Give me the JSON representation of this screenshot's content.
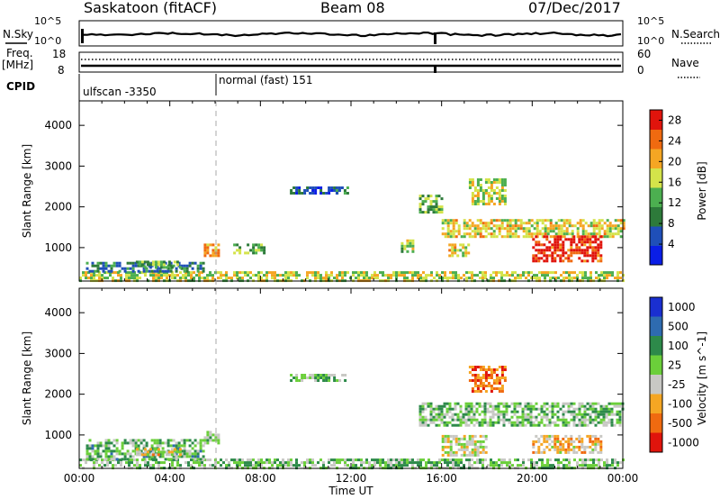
{
  "header": {
    "station": "Saskatoon (fitACF)",
    "beam": "Beam 08",
    "date": "07/Dec/2017"
  },
  "strip": {
    "nsky_label": "N.Sky",
    "nsky_ticks": [
      "10^5",
      "10^0"
    ],
    "nsearch_label": "N.Search",
    "nsearch_ticks": [
      "10^5",
      "10^0"
    ],
    "freq_label": "Freq.",
    "freq_unit": "[MHz]",
    "freq_ticks": [
      "18",
      "8"
    ],
    "nave_label": "Nave",
    "nave_ticks": [
      "60",
      "0"
    ],
    "cpid_label": "CPID",
    "cpid_modes": [
      {
        "name": "ulfscan -3350",
        "start_hour": 0
      },
      {
        "name": "normal (fast) 151",
        "start_hour": 6
      }
    ]
  },
  "x_axis": {
    "label": "Time UT",
    "ticks": [
      "00:00",
      "04:00",
      "08:00",
      "12:00",
      "16:00",
      "20:00",
      "00:00"
    ]
  },
  "chart_data": [
    {
      "type": "heatmap",
      "name": "Power",
      "ylabel": "Slant Range [km]",
      "yticks": [
        1000,
        2000,
        3000,
        4000
      ],
      "ylim": [
        180,
        4600
      ],
      "xlim": [
        0,
        24
      ],
      "colorbar": {
        "label": "Power [dB]",
        "ticks": [
          "4",
          "8",
          "12",
          "16",
          "20",
          "24",
          "28"
        ],
        "range": [
          0,
          30
        ],
        "colors": [
          "#0a1ee6",
          "#1f4fb8",
          "#2d7a3a",
          "#4caf50",
          "#d4e34a",
          "#f5a623",
          "#f06a10",
          "#e0140c"
        ]
      },
      "regions": [
        {
          "t0": 0.0,
          "t1": 24.0,
          "r0": 180,
          "r1": 420,
          "level": 0.55
        },
        {
          "t0": 0.3,
          "t1": 5.5,
          "r0": 420,
          "r1": 650,
          "level": 0.3
        },
        {
          "t0": 2.5,
          "t1": 4.5,
          "r0": 500,
          "r1": 680,
          "level": 0.4
        },
        {
          "t0": 5.5,
          "t1": 6.2,
          "r0": 800,
          "r1": 1100,
          "level": 0.7
        },
        {
          "t0": 6.8,
          "t1": 8.2,
          "r0": 900,
          "r1": 1100,
          "level": 0.4
        },
        {
          "t0": 9.3,
          "t1": 11.5,
          "r0": 2350,
          "r1": 2500,
          "level": 0.2
        },
        {
          "t0": 11.2,
          "t1": 11.8,
          "r0": 2350,
          "r1": 2500,
          "level": 0.3
        },
        {
          "t0": 14.2,
          "t1": 14.7,
          "r0": 900,
          "r1": 1200,
          "level": 0.5
        },
        {
          "t0": 15.0,
          "t1": 16.0,
          "r0": 1900,
          "r1": 2300,
          "level": 0.45
        },
        {
          "t0": 16.0,
          "t1": 24.0,
          "r0": 1250,
          "r1": 1700,
          "level": 0.6
        },
        {
          "t0": 17.2,
          "t1": 18.8,
          "r0": 2100,
          "r1": 2700,
          "level": 0.55
        },
        {
          "t0": 20.0,
          "t1": 23.0,
          "r0": 700,
          "r1": 1300,
          "level": 0.9
        },
        {
          "t0": 16.3,
          "t1": 17.2,
          "r0": 800,
          "r1": 1100,
          "level": 0.6
        }
      ]
    },
    {
      "type": "heatmap",
      "name": "Velocity",
      "ylabel": "Slant Range [km]",
      "yticks": [
        1000,
        2000,
        3000,
        4000
      ],
      "ylim": [
        180,
        4600
      ],
      "xlim": [
        0,
        24
      ],
      "colorbar": {
        "label": "Velocity [m s^-1]",
        "ticks": [
          "1000",
          "500",
          "100",
          "25",
          "-25",
          "-100",
          "-500",
          "-1000"
        ],
        "colors": [
          "#1a2fd0",
          "#2e6bb0",
          "#2d8a4a",
          "#6bcf3a",
          "#c8c8c4",
          "#f5a623",
          "#f06a10",
          "#e0140c"
        ]
      },
      "regions": [
        {
          "t0": 0.0,
          "t1": 24.0,
          "r0": 180,
          "r1": 420,
          "level": 0.45
        },
        {
          "t0": 0.3,
          "t1": 5.5,
          "r0": 420,
          "r1": 900,
          "level": 0.4
        },
        {
          "t0": 2.5,
          "t1": 4.5,
          "r0": 500,
          "r1": 680,
          "level": 0.6
        },
        {
          "t0": 5.5,
          "t1": 6.2,
          "r0": 800,
          "r1": 1100,
          "level": 0.5
        },
        {
          "t0": 9.3,
          "t1": 11.8,
          "r0": 2350,
          "r1": 2500,
          "level": 0.45
        },
        {
          "t0": 15.0,
          "t1": 24.0,
          "r0": 1250,
          "r1": 1800,
          "level": 0.45
        },
        {
          "t0": 17.2,
          "t1": 18.8,
          "r0": 2100,
          "r1": 2700,
          "level": 0.8
        },
        {
          "t0": 20.0,
          "t1": 23.0,
          "r0": 600,
          "r1": 1000,
          "level": 0.65
        },
        {
          "t0": 16.0,
          "t1": 18.0,
          "r0": 500,
          "r1": 1000,
          "level": 0.55
        }
      ]
    }
  ]
}
